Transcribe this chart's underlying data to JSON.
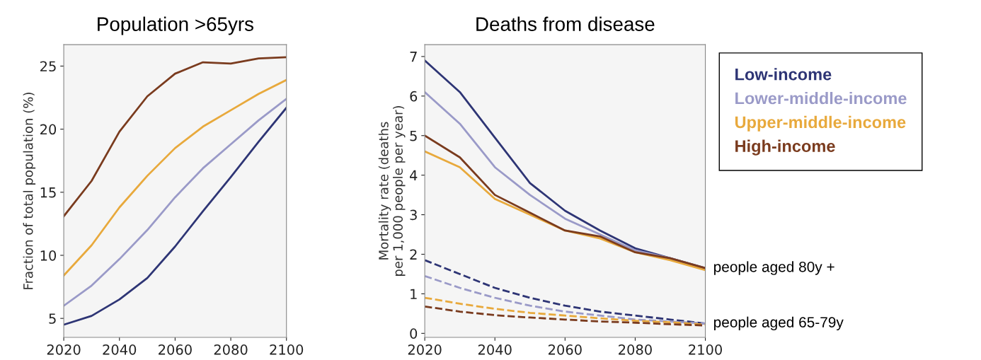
{
  "chart_data": [
    {
      "type": "line",
      "title": "Population >65yrs",
      "ylabel": "Fraction of total population (%)",
      "x": [
        2020,
        2030,
        2040,
        2050,
        2060,
        2070,
        2080,
        2090,
        2100
      ],
      "xlim": [
        2020,
        2100
      ],
      "xticks": [
        2020,
        2040,
        2060,
        2080,
        2100
      ],
      "ylim": [
        3.5,
        26.7
      ],
      "yticks": [
        5,
        10,
        15,
        20,
        25
      ],
      "grid": false,
      "legend": false,
      "line_style": "solid",
      "series": [
        {
          "color": "#7a3b1e",
          "values": [
            13.1,
            15.9,
            19.8,
            22.6,
            24.4,
            25.3,
            25.2,
            25.6,
            25.7
          ]
        },
        {
          "color": "#e8a93c",
          "values": [
            8.4,
            10.8,
            13.8,
            16.3,
            18.5,
            20.2,
            21.5,
            22.8,
            23.9
          ]
        },
        {
          "color": "#9a9ac8",
          "values": [
            6.0,
            7.6,
            9.7,
            12.0,
            14.6,
            16.9,
            18.8,
            20.7,
            22.4
          ]
        },
        {
          "color": "#2e3575",
          "values": [
            4.5,
            5.2,
            6.5,
            8.2,
            10.7,
            13.5,
            16.2,
            19.0,
            21.7
          ]
        }
      ]
    },
    {
      "type": "line",
      "title": "Deaths from disease",
      "ylabel": "Mortality rate (deaths\nper 1,000 people per year)",
      "x": [
        2020,
        2030,
        2040,
        2050,
        2060,
        2070,
        2080,
        2090,
        2100
      ],
      "xlim": [
        2020,
        2100
      ],
      "xticks": [
        2020,
        2040,
        2060,
        2080,
        2100
      ],
      "ylim": [
        -0.1,
        7.3
      ],
      "yticks": [
        0,
        1,
        2,
        3,
        4,
        5,
        6,
        7
      ],
      "grid": false,
      "legend": "right",
      "line_style": "solid",
      "annotations": [
        {
          "text": "people aged 80y +",
          "x": 2100,
          "y": 1.65
        },
        {
          "text": "people aged 65-79y",
          "x": 2100,
          "y": 0.25
        }
      ],
      "series": [
        {
          "name": "Low-income",
          "color": "#2e3575",
          "values": [
            6.9,
            6.1,
            4.95,
            3.8,
            3.1,
            2.6,
            2.15,
            1.9,
            1.65
          ]
        },
        {
          "name": "Lower-middle-income",
          "color": "#9a9ac8",
          "values": [
            6.1,
            5.3,
            4.2,
            3.5,
            2.9,
            2.5,
            2.1,
            1.9,
            1.65
          ]
        },
        {
          "name": "Upper-middle-income",
          "color": "#e8a93c",
          "values": [
            4.6,
            4.2,
            3.4,
            3.0,
            2.6,
            2.4,
            2.05,
            1.85,
            1.6
          ]
        },
        {
          "name": "High-income",
          "color": "#7a3b1e",
          "values": [
            5.0,
            4.45,
            3.5,
            3.05,
            2.6,
            2.45,
            2.05,
            1.9,
            1.65
          ]
        },
        {
          "color": "#2e3575",
          "line_style": "dashed",
          "values": [
            1.85,
            1.5,
            1.15,
            0.9,
            0.7,
            0.55,
            0.45,
            0.35,
            0.25
          ]
        },
        {
          "color": "#9a9ac8",
          "line_style": "dashed",
          "values": [
            1.45,
            1.15,
            0.9,
            0.7,
            0.55,
            0.45,
            0.35,
            0.3,
            0.25
          ]
        },
        {
          "color": "#e8a93c",
          "line_style": "dashed",
          "values": [
            0.9,
            0.75,
            0.62,
            0.52,
            0.45,
            0.38,
            0.32,
            0.28,
            0.22
          ]
        },
        {
          "color": "#7a3b1e",
          "line_style": "dashed",
          "values": [
            0.68,
            0.55,
            0.46,
            0.4,
            0.35,
            0.3,
            0.27,
            0.23,
            0.2
          ]
        }
      ]
    }
  ]
}
